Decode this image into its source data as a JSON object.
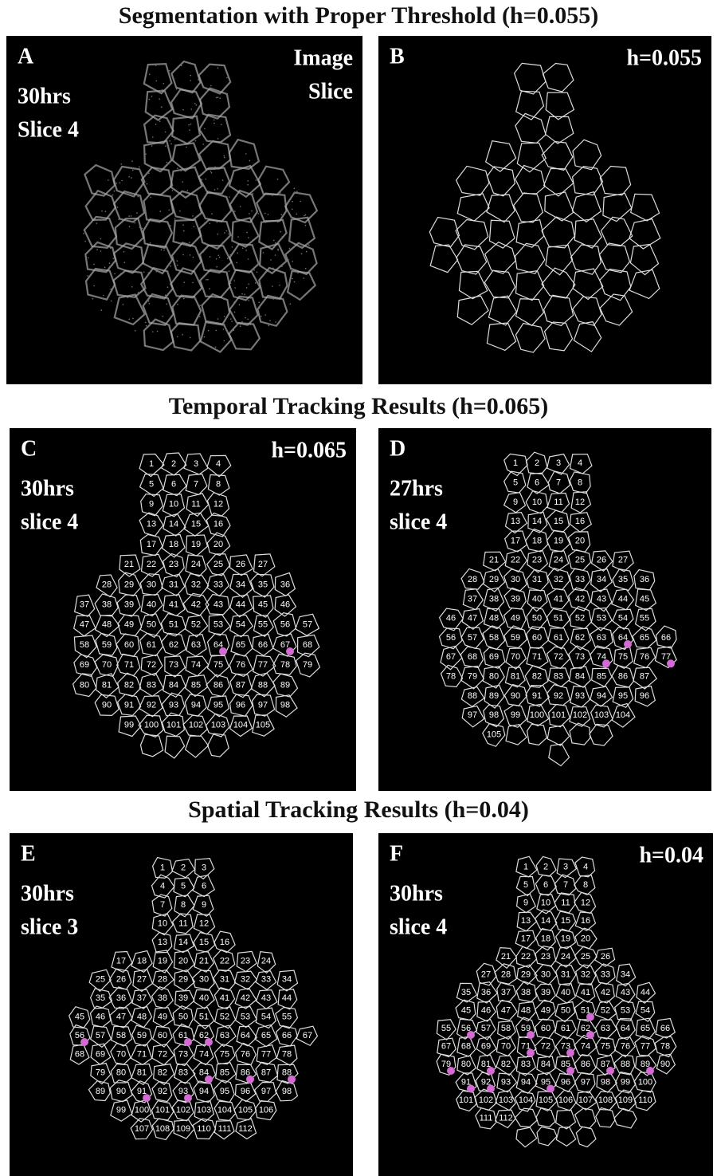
{
  "figure": {
    "sections": [
      {
        "title": "Segmentation with Proper Threshold (h=0.055)"
      },
      {
        "title": "Temporal  Tracking Results (h=0.065)"
      },
      {
        "title": "Spatial Tracking Results  (h=0.04)"
      }
    ],
    "panels": [
      {
        "letter": "A",
        "notes": [
          "30hrs",
          "Slice 4"
        ],
        "corner": [
          "Image",
          "Slice"
        ]
      },
      {
        "letter": "B",
        "corner": [
          "h=0.055"
        ]
      },
      {
        "letter": "C",
        "notes": [
          "30hrs",
          "slice 4"
        ],
        "corner": [
          "h=0.065"
        ],
        "cells": [
          1,
          2,
          3,
          4,
          5,
          6,
          7,
          8,
          9,
          10,
          11,
          12,
          13,
          14,
          15,
          16,
          17,
          18,
          19,
          20,
          21,
          22,
          23,
          24,
          25,
          26,
          27,
          28,
          29,
          30,
          31,
          32,
          33,
          34,
          35,
          36,
          37,
          38,
          39,
          40,
          41,
          42,
          43,
          44,
          45,
          46,
          47,
          48,
          49,
          50,
          51,
          52,
          53,
          54,
          55,
          56,
          57,
          58,
          59,
          60,
          61,
          62,
          63,
          64,
          65,
          66,
          67,
          68,
          69,
          70,
          71,
          72,
          73,
          74,
          75,
          76,
          77,
          78,
          79,
          80,
          81,
          82,
          83,
          84,
          85,
          86,
          87,
          88,
          89,
          90,
          91,
          92,
          93,
          94,
          95,
          96,
          97,
          98,
          99,
          100,
          101,
          102,
          103,
          104,
          105
        ]
      },
      {
        "letter": "D",
        "notes": [
          "27hrs",
          "slice 4"
        ],
        "cells": [
          1,
          2,
          3,
          4,
          5,
          6,
          7,
          8,
          9,
          10,
          11,
          12,
          13,
          14,
          15,
          16,
          17,
          18,
          19,
          20,
          21,
          22,
          23,
          24,
          25,
          26,
          27,
          28,
          29,
          30,
          31,
          32,
          33,
          34,
          35,
          36,
          37,
          38,
          39,
          40,
          41,
          42,
          43,
          44,
          45,
          46,
          47,
          48,
          49,
          50,
          51,
          52,
          53,
          54,
          55,
          56,
          57,
          58,
          59,
          60,
          61,
          62,
          63,
          64,
          65,
          66,
          67,
          68,
          69,
          70,
          71,
          72,
          73,
          74,
          75,
          76,
          77,
          78,
          79,
          80,
          81,
          82,
          83,
          84,
          85,
          86,
          87,
          88,
          89,
          90,
          91,
          92,
          93,
          94,
          95,
          96,
          97,
          98,
          99,
          100,
          101,
          102,
          103,
          104,
          105
        ]
      },
      {
        "letter": "E",
        "notes": [
          "30hrs",
          "slice 3"
        ],
        "cells": [
          1,
          2,
          3,
          4,
          5,
          6,
          7,
          8,
          9,
          10,
          11,
          12,
          13,
          14,
          15,
          16,
          17,
          18,
          19,
          20,
          21,
          22,
          23,
          24,
          25,
          26,
          27,
          28,
          29,
          30,
          31,
          32,
          33,
          34,
          35,
          36,
          37,
          38,
          39,
          40,
          41,
          42,
          43,
          44,
          45,
          46,
          47,
          48,
          49,
          50,
          51,
          52,
          53,
          54,
          55,
          56,
          57,
          58,
          59,
          60,
          61,
          62,
          63,
          64,
          65,
          66,
          67,
          68,
          69,
          70,
          71,
          72,
          73,
          74,
          75,
          76,
          77,
          78,
          79,
          80,
          81,
          82,
          83,
          84,
          85,
          86,
          87,
          88,
          89,
          90,
          91,
          92,
          93,
          94,
          95,
          96,
          97,
          98,
          99,
          100,
          101,
          102,
          103,
          104,
          105,
          106,
          107,
          108,
          109,
          110,
          111,
          112
        ]
      },
      {
        "letter": "F",
        "notes": [
          "30hrs",
          "slice 4"
        ],
        "corner": [
          "h=0.04"
        ],
        "cells": [
          1,
          2,
          3,
          4,
          5,
          6,
          7,
          8,
          9,
          10,
          11,
          12,
          13,
          14,
          15,
          16,
          17,
          18,
          19,
          20,
          21,
          22,
          23,
          24,
          25,
          26,
          27,
          28,
          29,
          30,
          31,
          32,
          33,
          34,
          35,
          36,
          37,
          38,
          39,
          40,
          41,
          42,
          43,
          44,
          45,
          46,
          47,
          48,
          49,
          50,
          51,
          52,
          53,
          54,
          55,
          56,
          57,
          58,
          59,
          60,
          61,
          62,
          63,
          64,
          65,
          66,
          67,
          68,
          69,
          70,
          71,
          72,
          73,
          74,
          75,
          76,
          77,
          78,
          79,
          80,
          81,
          82,
          83,
          84,
          85,
          86,
          87,
          88,
          89,
          90,
          91,
          92,
          93,
          94,
          95,
          96,
          97,
          98,
          99,
          100,
          101,
          102,
          103,
          104,
          105,
          106,
          107,
          108,
          109,
          110,
          111,
          112
        ]
      }
    ]
  }
}
